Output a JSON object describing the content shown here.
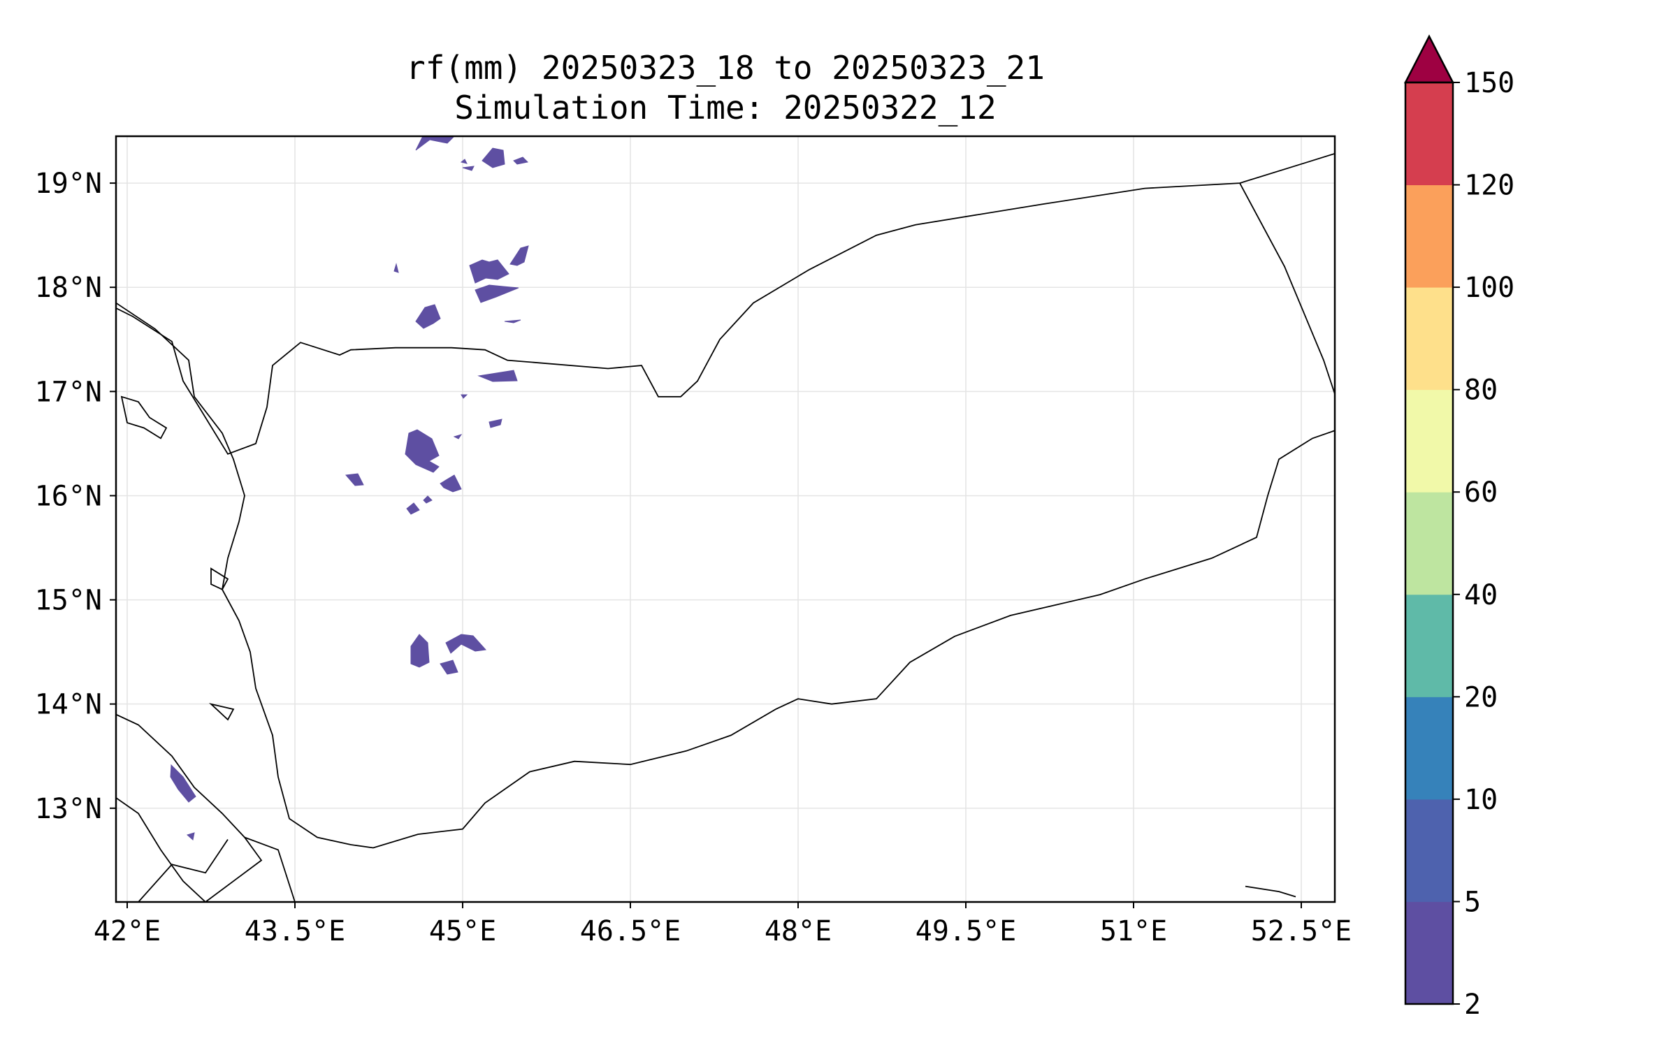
{
  "title": {
    "line1": "rf(mm) 20250323_18 to 20250323_21",
    "line2": "Simulation Time: 20250322_12"
  },
  "map": {
    "lon_range": [
      41.9,
      52.8
    ],
    "lat_range": [
      12.1,
      19.45
    ],
    "gridlines": true,
    "lon_ticks": [
      {
        "value": 42.0,
        "label": "42°E"
      },
      {
        "value": 43.5,
        "label": "43.5°E"
      },
      {
        "value": 45.0,
        "label": "45°E"
      },
      {
        "value": 46.5,
        "label": "46.5°E"
      },
      {
        "value": 48.0,
        "label": "48°E"
      },
      {
        "value": 49.5,
        "label": "49.5°E"
      },
      {
        "value": 51.0,
        "label": "51°E"
      },
      {
        "value": 52.5,
        "label": "52.5°E"
      }
    ],
    "lat_ticks": [
      {
        "value": 13,
        "label": "13°N"
      },
      {
        "value": 14,
        "label": "14°N"
      },
      {
        "value": 15,
        "label": "15°N"
      },
      {
        "value": 16,
        "label": "16°N"
      },
      {
        "value": 17,
        "label": "17°N"
      },
      {
        "value": 18,
        "label": "18°N"
      },
      {
        "value": 19,
        "label": "19°N"
      }
    ]
  },
  "colorbar": {
    "extend": "max",
    "extend_color": "#9e0142",
    "levels": [
      {
        "label": "2",
        "color": "#5e4fa2"
      },
      {
        "label": "5",
        "color": "#4e62ae"
      },
      {
        "label": "10",
        "color": "#3682ba"
      },
      {
        "label": "20",
        "color": "#5fbaa8"
      },
      {
        "label": "40",
        "color": "#bee5a0"
      },
      {
        "label": "60",
        "color": "#f1f9a9"
      },
      {
        "label": "80",
        "color": "#fee08b"
      },
      {
        "label": "100",
        "color": "#fba05b"
      },
      {
        "label": "120",
        "color": "#d53e4f"
      },
      {
        "label": "150",
        "color": "#9e0142"
      }
    ]
  },
  "rain_color": "#5e4fa2",
  "borders": {
    "saudi_yemen": [
      [
        41.9,
        17.8
      ],
      [
        42.05,
        17.72
      ],
      [
        42.4,
        17.48
      ],
      [
        42.5,
        17.1
      ],
      [
        42.9,
        16.4
      ],
      [
        43.15,
        16.5
      ],
      [
        43.25,
        16.85
      ],
      [
        43.3,
        17.25
      ],
      [
        43.55,
        17.47
      ],
      [
        43.9,
        17.35
      ],
      [
        44.0,
        17.4
      ],
      [
        44.4,
        17.42
      ],
      [
        44.9,
        17.42
      ],
      [
        45.2,
        17.4
      ],
      [
        45.4,
        17.3
      ],
      [
        46.3,
        17.22
      ],
      [
        46.6,
        17.25
      ],
      [
        46.75,
        16.95
      ],
      [
        46.95,
        16.95
      ],
      [
        47.1,
        17.1
      ],
      [
        47.3,
        17.5
      ],
      [
        47.6,
        17.85
      ],
      [
        48.1,
        18.17
      ],
      [
        48.7,
        18.5
      ],
      [
        49.05,
        18.6
      ],
      [
        50.2,
        18.8
      ],
      [
        51.1,
        18.95
      ],
      [
        51.95,
        19.0
      ],
      [
        52.55,
        19.2
      ],
      [
        53.3,
        19.45
      ]
    ],
    "yemen_oman": [
      [
        51.95,
        19.0
      ],
      [
        52.35,
        18.2
      ],
      [
        52.7,
        17.3
      ],
      [
        52.9,
        16.65
      ]
    ],
    "eritrea_ethiopia": [
      [
        42.1,
        12.1
      ],
      [
        42.4,
        12.46
      ],
      [
        42.7,
        12.38
      ],
      [
        42.9,
        12.7
      ]
    ],
    "djibouti": [
      [
        43.05,
        12.72
      ],
      [
        43.35,
        12.6
      ],
      [
        43.5,
        12.1
      ]
    ]
  },
  "coasts": {
    "arabia": [
      [
        41.9,
        17.85
      ],
      [
        42.25,
        17.6
      ],
      [
        42.55,
        17.3
      ],
      [
        42.6,
        16.95
      ],
      [
        42.85,
        16.6
      ],
      [
        42.95,
        16.35
      ],
      [
        43.05,
        16.0
      ],
      [
        43.0,
        15.75
      ],
      [
        42.9,
        15.4
      ],
      [
        42.85,
        15.1
      ],
      [
        43.0,
        14.8
      ],
      [
        43.1,
        14.5
      ],
      [
        43.15,
        14.15
      ],
      [
        43.3,
        13.7
      ],
      [
        43.35,
        13.3
      ],
      [
        43.45,
        12.9
      ],
      [
        43.7,
        12.72
      ],
      [
        44.0,
        12.65
      ],
      [
        44.2,
        12.62
      ],
      [
        44.6,
        12.75
      ],
      [
        45.0,
        12.8
      ],
      [
        45.2,
        13.05
      ],
      [
        45.6,
        13.35
      ],
      [
        46.0,
        13.45
      ],
      [
        46.5,
        13.42
      ],
      [
        47.0,
        13.55
      ],
      [
        47.4,
        13.7
      ],
      [
        47.8,
        13.95
      ],
      [
        48.0,
        14.05
      ],
      [
        48.3,
        14.0
      ],
      [
        48.7,
        14.05
      ],
      [
        49.0,
        14.4
      ],
      [
        49.4,
        14.65
      ],
      [
        49.9,
        14.85
      ],
      [
        50.3,
        14.95
      ],
      [
        50.7,
        15.05
      ],
      [
        51.1,
        15.2
      ],
      [
        51.7,
        15.4
      ],
      [
        52.1,
        15.6
      ],
      [
        52.2,
        16.0
      ],
      [
        52.3,
        16.35
      ],
      [
        52.6,
        16.55
      ],
      [
        53.0,
        16.7
      ],
      [
        53.3,
        16.75
      ]
    ],
    "africa": [
      [
        41.9,
        13.9
      ],
      [
        42.1,
        13.8
      ],
      [
        42.4,
        13.5
      ],
      [
        42.6,
        13.2
      ],
      [
        42.85,
        12.95
      ],
      [
        43.05,
        12.72
      ],
      [
        43.2,
        12.5
      ],
      [
        42.95,
        12.3
      ],
      [
        42.7,
        12.1
      ]
    ],
    "africa_low": [
      [
        41.9,
        13.1
      ],
      [
        42.1,
        12.95
      ],
      [
        42.3,
        12.6
      ],
      [
        42.5,
        12.3
      ],
      [
        42.7,
        12.1
      ]
    ],
    "dahlak": [
      [
        41.95,
        16.95
      ],
      [
        42.1,
        16.9
      ],
      [
        42.2,
        16.75
      ],
      [
        42.35,
        16.65
      ],
      [
        42.3,
        16.55
      ],
      [
        42.15,
        16.65
      ],
      [
        42.0,
        16.7
      ]
    ],
    "farasan": [
      [
        42.75,
        15.3
      ],
      [
        42.9,
        15.2
      ],
      [
        42.85,
        15.1
      ],
      [
        42.75,
        15.15
      ]
    ],
    "hanish": [
      [
        42.75,
        14.0
      ],
      [
        42.95,
        13.95
      ],
      [
        42.9,
        13.85
      ]
    ],
    "socotra_w": [
      [
        52.0,
        12.25
      ],
      [
        52.3,
        12.2
      ],
      [
        52.45,
        12.15
      ]
    ]
  }
}
